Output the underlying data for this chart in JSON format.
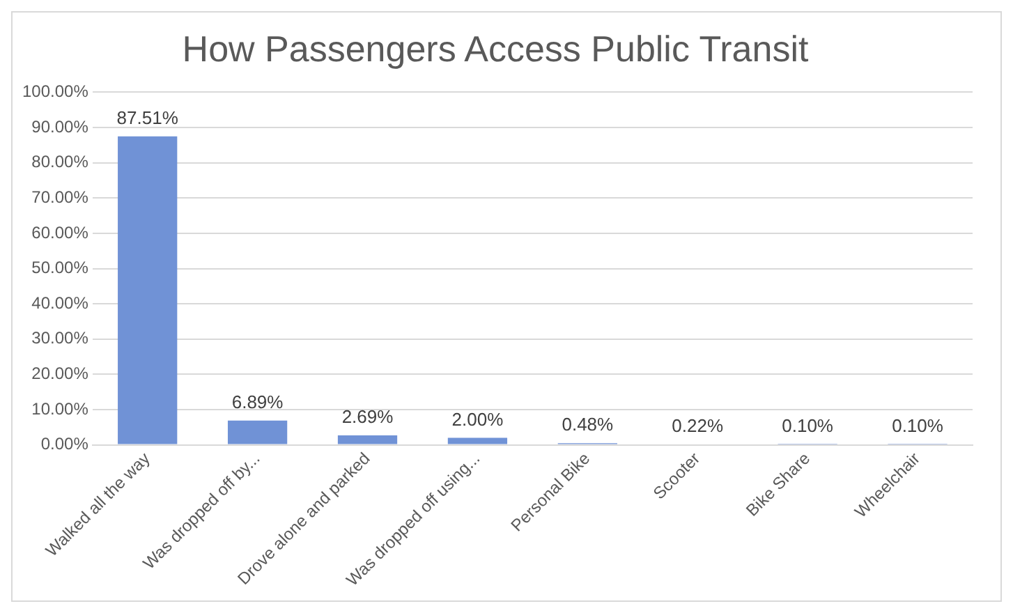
{
  "chart_data": {
    "type": "bar",
    "title": "How Passengers Access Public Transit",
    "categories": [
      "Walked all the way",
      "Was dropped off by...",
      "Drove alone and parked",
      "Was dropped off using...",
      "Personal Bike",
      "Scooter",
      "Bike Share",
      "Wheelchair"
    ],
    "values": [
      87.51,
      6.89,
      2.69,
      2.0,
      0.48,
      0.22,
      0.1,
      0.1
    ],
    "value_labels": [
      "87.51%",
      "6.89%",
      "2.69%",
      "2.00%",
      "0.48%",
      "0.22%",
      "0.10%",
      "0.10%"
    ],
    "color": "#7092d6",
    "ylim": [
      0,
      100
    ],
    "yticks": [
      {
        "value": 0,
        "label": "0.00%"
      },
      {
        "value": 10,
        "label": "10.00%"
      },
      {
        "value": 20,
        "label": "20.00%"
      },
      {
        "value": 30,
        "label": "30.00%"
      },
      {
        "value": 40,
        "label": "40.00%"
      },
      {
        "value": 50,
        "label": "50.00%"
      },
      {
        "value": 60,
        "label": "60.00%"
      },
      {
        "value": 70,
        "label": "70.00%"
      },
      {
        "value": 80,
        "label": "80.00%"
      },
      {
        "value": 90,
        "label": "90.00%"
      },
      {
        "value": 100,
        "label": "100.00%"
      }
    ],
    "grid": "y",
    "legend": false
  }
}
